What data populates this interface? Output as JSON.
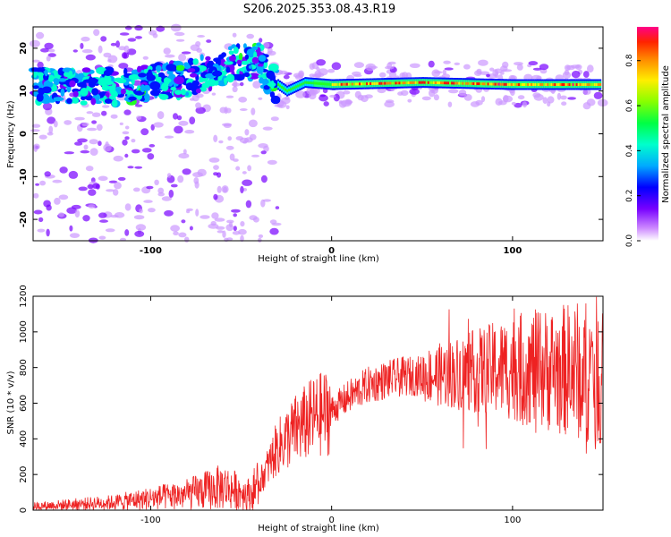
{
  "title": "S206.2025.353.08.43.R19",
  "chart_data": [
    {
      "type": "heatmap",
      "xlabel": "Height of straight line (km)",
      "ylabel": "Frequency (Hz)",
      "xlim": [
        -165,
        150
      ],
      "ylim": [
        -25,
        25
      ],
      "xticks": [
        -100,
        0,
        100
      ],
      "yticks": [
        -20,
        -10,
        0,
        10,
        20
      ],
      "colorbar": {
        "label": "Normalized spectral amplitude",
        "range": [
          0,
          0.95
        ],
        "ticks": [
          0.0,
          0.2,
          0.4,
          0.6,
          0.8
        ]
      },
      "ridge": {
        "description_points_km_hz": [
          [
            -160,
            11
          ],
          [
            -120,
            11
          ],
          [
            -80,
            13
          ],
          [
            -50,
            17
          ],
          [
            -40,
            17
          ],
          [
            -35,
            13
          ],
          [
            -25,
            10
          ],
          [
            -15,
            12
          ],
          [
            0,
            11.5
          ],
          [
            50,
            12
          ],
          [
            100,
            11.5
          ],
          [
            148,
            11.5
          ]
        ],
        "max_amplitude_region_km": [
          0,
          148
        ]
      }
    },
    {
      "type": "line",
      "xlabel": "Height of straight line (km)",
      "ylabel": "SNR (10 * v/v)",
      "xlim": [
        -165,
        150
      ],
      "ylim": [
        0,
        1200
      ],
      "xticks": [
        -100,
        0,
        100
      ],
      "yticks": [
        0,
        200,
        400,
        600,
        800,
        1000,
        1200
      ],
      "series": [
        {
          "name": "SNR",
          "color": "#ee2222",
          "envelope_points": [
            [
              -165,
              20
            ],
            [
              -120,
              40
            ],
            [
              -80,
              80
            ],
            [
              -60,
              120
            ],
            [
              -45,
              80
            ],
            [
              -40,
              150
            ],
            [
              -35,
              250
            ],
            [
              -30,
              350
            ],
            [
              -20,
              450
            ],
            [
              -10,
              520
            ],
            [
              0,
              560
            ],
            [
              10,
              640
            ],
            [
              20,
              700
            ],
            [
              30,
              730
            ],
            [
              40,
              750
            ],
            [
              60,
              760
            ],
            [
              80,
              780
            ],
            [
              100,
              800
            ],
            [
              120,
              790
            ],
            [
              148,
              780
            ]
          ]
        }
      ]
    }
  ]
}
